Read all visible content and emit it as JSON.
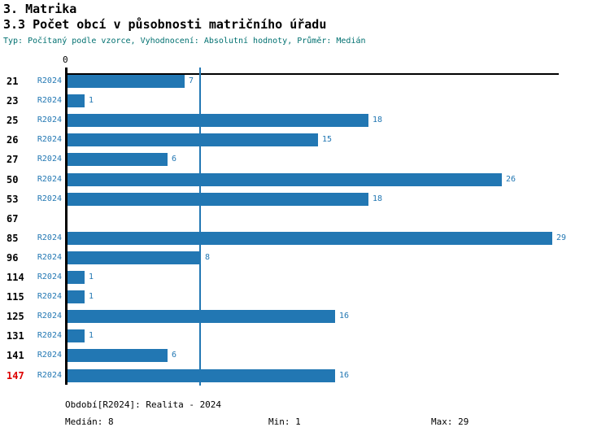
{
  "header": {
    "title1": "3. Matrika",
    "title2": "3.3 Počet obcí v působnosti matričního úřadu",
    "subtitle": "Typ: Počítaný podle vzorce, Vyhodnocení: Absolutní hodnoty, Průměr: Medián"
  },
  "chart_data": {
    "type": "bar",
    "orientation": "horizontal",
    "title": "3.3 Počet obcí v působnosti matričního úřadu",
    "series_label": "R2024",
    "categories": [
      "21",
      "23",
      "25",
      "26",
      "27",
      "50",
      "53",
      "67",
      "85",
      "96",
      "114",
      "115",
      "125",
      "131",
      "141",
      "147"
    ],
    "values": [
      7,
      1,
      18,
      15,
      6,
      26,
      18,
      null,
      29,
      8,
      1,
      1,
      16,
      1,
      6,
      16
    ],
    "highlighted_category": "147",
    "axis_zero_label": "0",
    "xlim": [
      0,
      29
    ],
    "median": 8,
    "min": 1,
    "max": 29,
    "grid": false,
    "legend_position": "none",
    "colors": {
      "bar": "#2277b3",
      "median_line": "#2277b3",
      "value_text": "#2277b3",
      "series_text": "#2277b3",
      "category_text": "#000000",
      "highlight_text": "#dd0000"
    }
  },
  "footer": {
    "period": "Období[R2024]: Realita - 2024",
    "median": "Medián: 8",
    "min": "Min: 1",
    "max": "Max: 29"
  }
}
